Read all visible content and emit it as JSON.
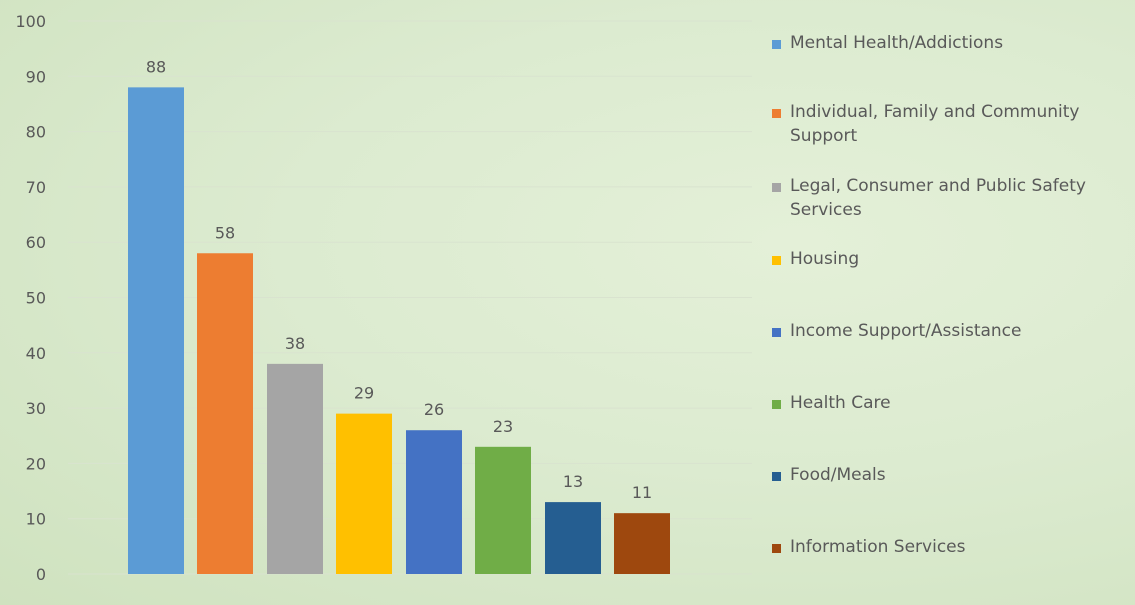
{
  "chart_data": {
    "type": "bar",
    "categories": [
      "Mental Health/Addictions",
      "Individual, Family and Community Support",
      "Legal, Consumer and Public Safety Services",
      "Housing",
      "Income Support/Assistance",
      "Health Care",
      "Food/Meals",
      "Information Services"
    ],
    "values": [
      88,
      58,
      38,
      29,
      26,
      23,
      13,
      11
    ],
    "colors": [
      "#5b9bd5",
      "#ed7d31",
      "#a5a5a5",
      "#ffc000",
      "#4472c4",
      "#70ad47",
      "#255e91",
      "#9e480e"
    ],
    "y_ticks": [
      "0",
      "10",
      "20",
      "30",
      "40",
      "50",
      "60",
      "70",
      "80",
      "90",
      "100"
    ],
    "ylim": [
      0,
      100
    ],
    "grid": true,
    "legend_position": "right",
    "data_labels": [
      "88",
      "58",
      "38",
      "29",
      "26",
      "23",
      "13",
      "11"
    ]
  },
  "legend": {
    "items": [
      {
        "label": "Mental Health/Addictions",
        "color": "#5b9bd5"
      },
      {
        "label": "Individual, Family and Community Support",
        "color": "#ed7d31"
      },
      {
        "label": "Legal, Consumer and Public Safety Services",
        "color": "#a5a5a5"
      },
      {
        "label": "Housing",
        "color": "#ffc000"
      },
      {
        "label": "Income Support/Assistance",
        "color": "#4472c4"
      },
      {
        "label": "Health Care",
        "color": "#70ad47"
      },
      {
        "label": "Food/Meals",
        "color": "#255e91"
      },
      {
        "label": "Information Services",
        "color": "#9e480e"
      }
    ]
  },
  "style": {
    "gridline_color": "#d9e3cf",
    "text_color": "#595959"
  }
}
